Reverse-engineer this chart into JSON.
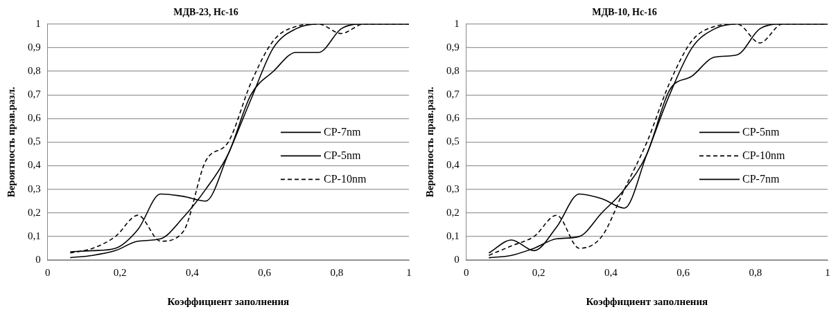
{
  "chart_data": [
    {
      "type": "line",
      "title": "МДВ-23, Hc-16",
      "xlabel": "Коэффициент заполнения",
      "ylabel": "Вероятность прав.разл.",
      "x": [
        0.0625,
        0.125,
        0.1875,
        0.25,
        0.3125,
        0.375,
        0.4375,
        0.5,
        0.5625,
        0.625,
        0.6875,
        0.75,
        0.8125,
        0.875,
        0.9375,
        1
      ],
      "series": [
        {
          "name": "CP-7nm",
          "color": "#000000",
          "line_style": "solid",
          "values": [
            0.01,
            0.02,
            0.04,
            0.08,
            0.09,
            0.18,
            0.3,
            0.45,
            0.7,
            0.8,
            0.88,
            0.88,
            0.98,
            1,
            1,
            1
          ]
        },
        {
          "name": "CP-5nm",
          "color": "#000000",
          "line_style": "solid",
          "values": [
            0.035,
            0.04,
            0.05,
            0.13,
            0.28,
            0.27,
            0.25,
            0.45,
            0.68,
            0.9,
            0.98,
            1,
            1,
            1,
            1,
            1
          ]
        },
        {
          "name": "CP-10nm",
          "color": "#000000",
          "line_style": "dashed",
          "values": [
            0.03,
            0.05,
            0.1,
            0.19,
            0.08,
            0.12,
            0.42,
            0.5,
            0.75,
            0.93,
            0.99,
            1,
            0.96,
            1,
            1,
            1
          ]
        }
      ],
      "xlim": [
        0,
        1
      ],
      "xticks": [
        {
          "value": 0,
          "label": "0"
        },
        {
          "value": 0.2,
          "label": "0,2"
        },
        {
          "value": 0.4,
          "label": "0,4"
        },
        {
          "value": 0.6,
          "label": "0,6"
        },
        {
          "value": 0.8,
          "label": "0,8"
        },
        1
      ],
      "ylim": [
        0,
        1
      ],
      "yticks": [
        {
          "value": 0,
          "label": "0"
        },
        {
          "value": 0.1,
          "label": "0,1"
        },
        {
          "value": 0.2,
          "label": "0,2"
        },
        {
          "value": 0.3,
          "label": "0,3"
        },
        {
          "value": 0.4,
          "label": "0,4"
        },
        {
          "value": 0.5,
          "label": "0,5"
        },
        {
          "value": 0.6,
          "label": "0,6"
        },
        {
          "value": 0.7,
          "label": "0,7"
        },
        {
          "value": 0.8,
          "label": "0,8"
        },
        {
          "value": 0.9,
          "label": "0,9"
        },
        1
      ],
      "grid": "y",
      "legend": "right",
      "marker": "none"
    },
    {
      "type": "line",
      "title": "МДВ-10, Hc-16",
      "xlabel": "Коэффициент заполнения",
      "ylabel": "Вероятность прав.разл.",
      "x": [
        0.0625,
        0.125,
        0.1875,
        0.25,
        0.3125,
        0.375,
        0.4375,
        0.5,
        0.5625,
        0.625,
        0.6875,
        0.75,
        0.8125,
        0.875,
        0.9375,
        1
      ],
      "series": [
        {
          "name": "CP-5nm",
          "color": "#000000",
          "line_style": "solid",
          "values": [
            0.03,
            0.085,
            0.04,
            0.14,
            0.28,
            0.26,
            0.22,
            0.45,
            0.7,
            0.9,
            0.98,
            1,
            1,
            1,
            1,
            1
          ]
        },
        {
          "name": "CP-10nm",
          "color": "#000000",
          "line_style": "dashed",
          "values": [
            0.02,
            0.06,
            0.1,
            0.19,
            0.05,
            0.1,
            0.3,
            0.5,
            0.75,
            0.93,
            0.99,
            1,
            0.92,
            1,
            1,
            1
          ]
        },
        {
          "name": "CP-7nm",
          "color": "#000000",
          "line_style": "solid",
          "values": [
            0.01,
            0.02,
            0.05,
            0.09,
            0.1,
            0.2,
            0.3,
            0.45,
            0.72,
            0.78,
            0.86,
            0.87,
            0.98,
            1,
            1,
            1
          ]
        }
      ],
      "xlim": [
        0,
        1
      ],
      "xticks": [
        {
          "value": 0,
          "label": "0"
        },
        {
          "value": 0.2,
          "label": "0,2"
        },
        {
          "value": 0.4,
          "label": "0,4"
        },
        {
          "value": 0.6,
          "label": "0,6"
        },
        {
          "value": 0.8,
          "label": "0,8"
        },
        1
      ],
      "ylim": [
        0,
        1
      ],
      "yticks": [
        {
          "value": 0,
          "label": "0"
        },
        {
          "value": 0.1,
          "label": "0,1"
        },
        {
          "value": 0.2,
          "label": "0,2"
        },
        {
          "value": 0.3,
          "label": "0,3"
        },
        {
          "value": 0.4,
          "label": "0,4"
        },
        {
          "value": 0.5,
          "label": "0,5"
        },
        {
          "value": 0.6,
          "label": "0,6"
        },
        {
          "value": 0.7,
          "label": "0,7"
        },
        {
          "value": 0.8,
          "label": "0,8"
        },
        {
          "value": 0.9,
          "label": "0,9"
        },
        1
      ],
      "grid": "y",
      "legend": "right",
      "marker": "none"
    }
  ]
}
